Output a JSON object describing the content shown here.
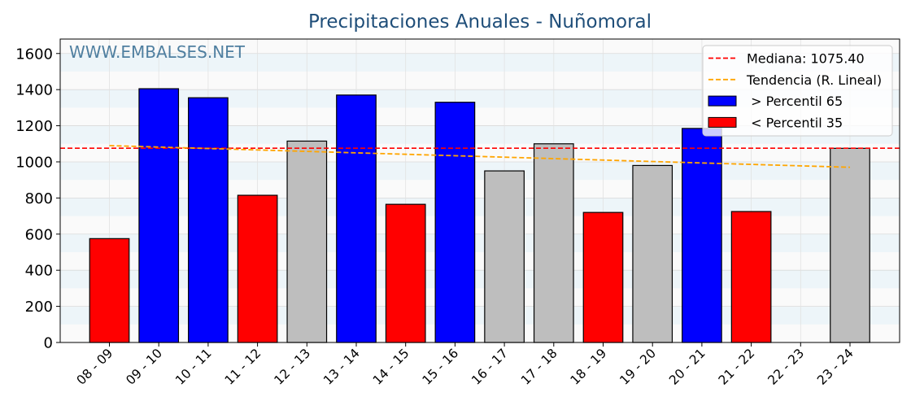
{
  "chart_data": {
    "type": "bar",
    "title": "Precipitaciones Anuales - Nuñomoral",
    "watermark": "WWW.EMBALSES.NET",
    "xlabel": "",
    "ylabel": "",
    "ylim": [
      0,
      1680
    ],
    "yticks": [
      0,
      200,
      400,
      600,
      800,
      1000,
      1200,
      1400,
      1600
    ],
    "grid": true,
    "legend_position": "top-right",
    "categories": [
      "08 - 09",
      "09 - 10",
      "10 - 11",
      "11 - 12",
      "12 - 13",
      "13 - 14",
      "14 - 15",
      "15 - 16",
      "16 - 17",
      "17 - 18",
      "18 - 19",
      "19 - 20",
      "20 - 21",
      "21 - 22",
      "22 - 23",
      "23 - 24"
    ],
    "values": [
      575,
      1405,
      1355,
      815,
      1115,
      1370,
      765,
      1330,
      950,
      1100,
      720,
      980,
      1185,
      725,
      null,
      1075
    ],
    "classes": [
      "low",
      "high",
      "high",
      "low",
      "mid",
      "high",
      "low",
      "high",
      "mid",
      "mid",
      "low",
      "mid",
      "high",
      "low",
      "mid",
      "mid"
    ],
    "class_colors": {
      "high": "#0000ff",
      "low": "#ff0000",
      "mid": "#bebebe"
    },
    "median": {
      "value": 1075.4,
      "label": "Mediana: 1075.40",
      "color": "#ff0000"
    },
    "trend": {
      "start_value": 1090,
      "end_value": 970,
      "label": "Tendencia (R. Lineal)",
      "color": "#ffa500"
    },
    "legend": [
      {
        "key": "median",
        "kind": "line",
        "label": "Mediana: 1075.40",
        "color": "#ff0000"
      },
      {
        "key": "trend",
        "kind": "line",
        "label": "Tendencia (R. Lineal)",
        "color": "#ffa500"
      },
      {
        "key": "high",
        "kind": "patch",
        "label": " > Percentil 65",
        "color": "#0000ff"
      },
      {
        "key": "low",
        "kind": "patch",
        "label": " < Percentil 35",
        "color": "#ff0000"
      }
    ]
  },
  "colors": {
    "title": "#1f4e79",
    "watermark": "#4f7fa0",
    "band": "#edf5f9",
    "plot_bg": "#fafafa"
  }
}
